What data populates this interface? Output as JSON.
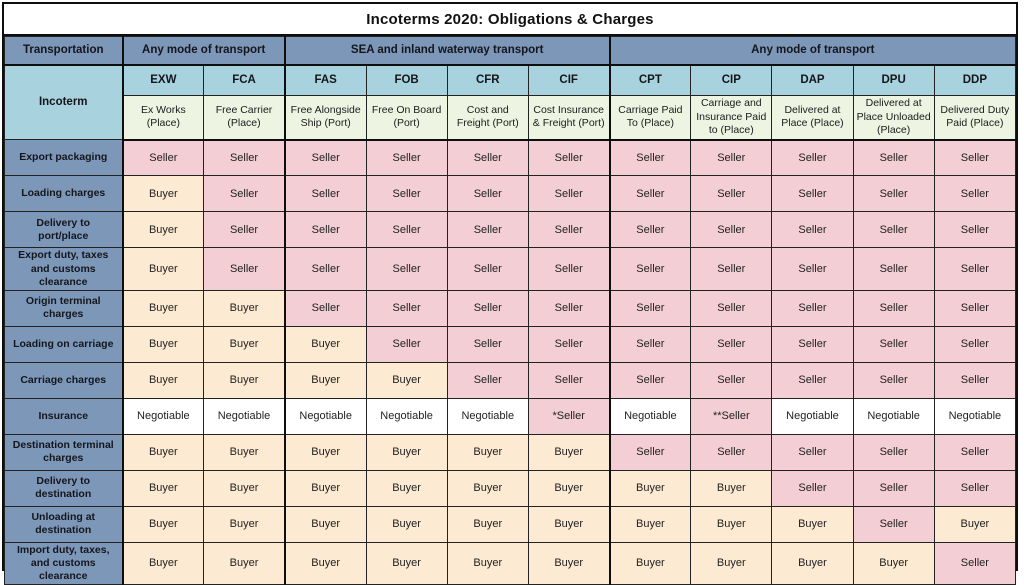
{
  "title": "Incoterms 2020: Obligations & Charges",
  "colors": {
    "header_blue": "#7d97b9",
    "code_lightblue": "#a7d2de",
    "name_lightgreen": "#edf4e2",
    "seller_pink": "#f3ced4",
    "buyer_cream": "#fdead2",
    "negotiable_white": "#ffffff",
    "border_black": "#0e0e0e"
  },
  "table": {
    "corner_label": "Transportation",
    "incoterm_label": "Incoterm",
    "groups": [
      {
        "label": "Any mode of transport",
        "span": 2
      },
      {
        "label": "SEA and inland waterway transport",
        "span": 4
      },
      {
        "label": "Any mode of transport",
        "span": 5
      }
    ],
    "columns": [
      {
        "code": "EXW",
        "name": "Ex Works (Place)"
      },
      {
        "code": "FCA",
        "name": "Free Carrier (Place)"
      },
      {
        "code": "FAS",
        "name": "Free Alongside Ship (Port)"
      },
      {
        "code": "FOB",
        "name": "Free On Board (Port)"
      },
      {
        "code": "CFR",
        "name": "Cost and Freight (Port)"
      },
      {
        "code": "CIF",
        "name": "Cost Insurance & Freight (Port)"
      },
      {
        "code": "CPT",
        "name": "Carriage Paid To (Place)"
      },
      {
        "code": "CIP",
        "name": "Carriage and Insurance Paid to (Place)"
      },
      {
        "code": "DAP",
        "name": "Delivered at Place (Place)"
      },
      {
        "code": "DPU",
        "name": "Delivered at Place Unloaded (Place)"
      },
      {
        "code": "DDP",
        "name": "Delivered Duty Paid (Place)"
      }
    ],
    "rows": [
      {
        "label": "Export packaging",
        "values": [
          "Seller",
          "Seller",
          "Seller",
          "Seller",
          "Seller",
          "Seller",
          "Seller",
          "Seller",
          "Seller",
          "Seller",
          "Seller"
        ]
      },
      {
        "label": "Loading charges",
        "values": [
          "Buyer",
          "Seller",
          "Seller",
          "Seller",
          "Seller",
          "Seller",
          "Seller",
          "Seller",
          "Seller",
          "Seller",
          "Seller"
        ]
      },
      {
        "label": "Delivery to port/place",
        "values": [
          "Buyer",
          "Seller",
          "Seller",
          "Seller",
          "Seller",
          "Seller",
          "Seller",
          "Seller",
          "Seller",
          "Seller",
          "Seller"
        ]
      },
      {
        "label": "Export duty, taxes and customs clearance",
        "values": [
          "Buyer",
          "Seller",
          "Seller",
          "Seller",
          "Seller",
          "Seller",
          "Seller",
          "Seller",
          "Seller",
          "Seller",
          "Seller"
        ]
      },
      {
        "label": "Origin terminal charges",
        "values": [
          "Buyer",
          "Buyer",
          "Seller",
          "Seller",
          "Seller",
          "Seller",
          "Seller",
          "Seller",
          "Seller",
          "Seller",
          "Seller"
        ]
      },
      {
        "label": "Loading on carriage",
        "values": [
          "Buyer",
          "Buyer",
          "Buyer",
          "Seller",
          "Seller",
          "Seller",
          "Seller",
          "Seller",
          "Seller",
          "Seller",
          "Seller"
        ]
      },
      {
        "label": "Carriage charges",
        "values": [
          "Buyer",
          "Buyer",
          "Buyer",
          "Buyer",
          "Seller",
          "Seller",
          "Seller",
          "Seller",
          "Seller",
          "Seller",
          "Seller"
        ]
      },
      {
        "label": "Insurance",
        "values": [
          "Negotiable",
          "Negotiable",
          "Negotiable",
          "Negotiable",
          "Negotiable",
          "*Seller",
          "Negotiable",
          "**Seller",
          "Negotiable",
          "Negotiable",
          "Negotiable"
        ]
      },
      {
        "label": "Destination terminal charges",
        "values": [
          "Buyer",
          "Buyer",
          "Buyer",
          "Buyer",
          "Buyer",
          "Buyer",
          "Seller",
          "Seller",
          "Seller",
          "Seller",
          "Seller"
        ]
      },
      {
        "label": "Delivery to destination",
        "values": [
          "Buyer",
          "Buyer",
          "Buyer",
          "Buyer",
          "Buyer",
          "Buyer",
          "Buyer",
          "Buyer",
          "Seller",
          "Seller",
          "Seller"
        ]
      },
      {
        "label": "Unloading at destination",
        "values": [
          "Buyer",
          "Buyer",
          "Buyer",
          "Buyer",
          "Buyer",
          "Buyer",
          "Buyer",
          "Buyer",
          "Buyer",
          "Seller",
          "Buyer"
        ]
      },
      {
        "label": "Import duty, taxes, and customs clearance",
        "values": [
          "Buyer",
          "Buyer",
          "Buyer",
          "Buyer",
          "Buyer",
          "Buyer",
          "Buyer",
          "Buyer",
          "Buyer",
          "Buyer",
          "Seller"
        ]
      }
    ]
  }
}
